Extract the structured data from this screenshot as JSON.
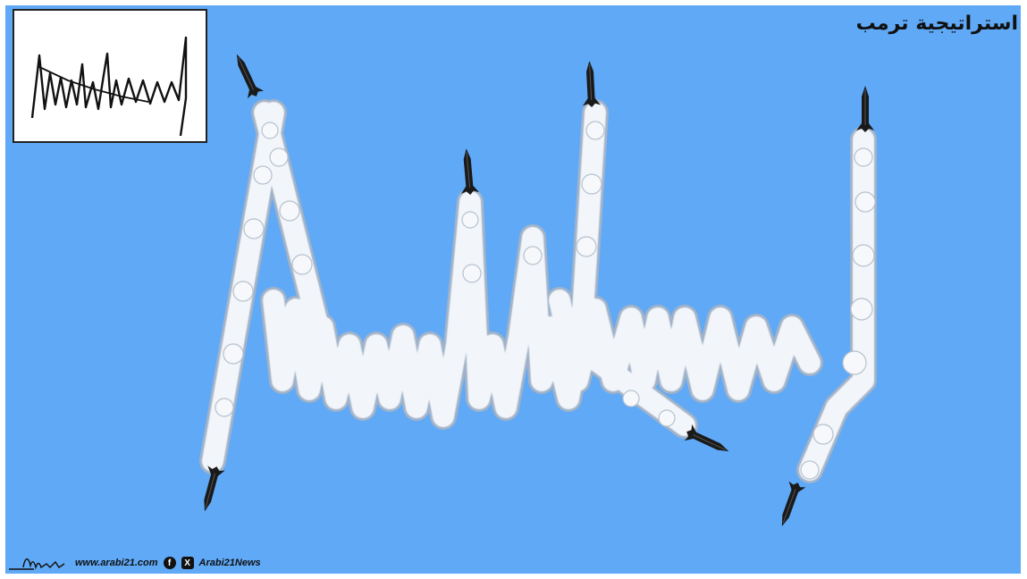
{
  "cartoon": {
    "title": "استراتيجية ترمب",
    "background_color": "#5fa9f7",
    "smoke_color": "#eef2f7",
    "missile_color": "#1a1a1a",
    "inset_label": "signature-inset",
    "footer": {
      "website": "www.arabi21.com",
      "facebook_icon": "facebook-icon",
      "x_icon": "x-icon",
      "handle": "Arabi21News"
    }
  }
}
